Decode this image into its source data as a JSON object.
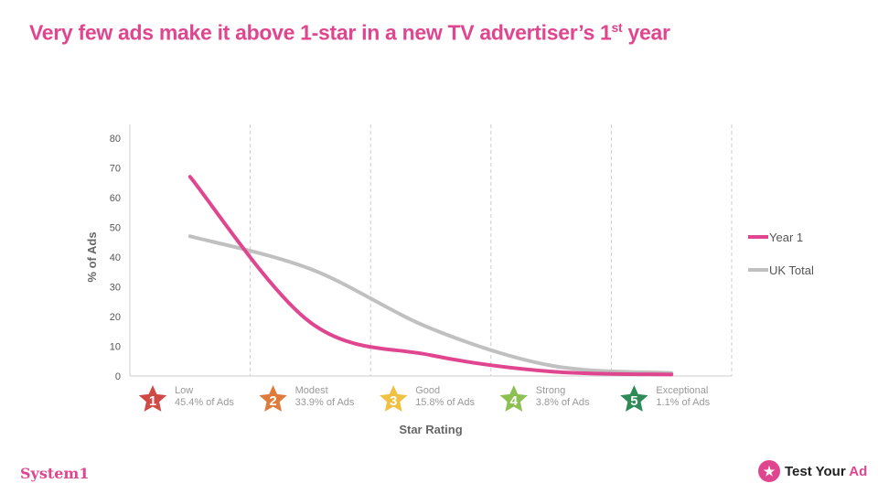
{
  "title": {
    "text": "Very few ads make it above 1-star in a new TV advertiser’s 1",
    "sup": "st",
    "tail": " year"
  },
  "chart_data": {
    "type": "line",
    "x": [
      1,
      2,
      3,
      4,
      5
    ],
    "xlabel": "Star Rating",
    "ylabel": "% of Ads",
    "ylim": [
      0,
      80
    ],
    "yticks": [
      0,
      10,
      20,
      30,
      40,
      50,
      60,
      70,
      80
    ],
    "grid": "vertical dashed",
    "legend": "right",
    "categories": [
      {
        "num": "1",
        "name": "Low",
        "share": "45.4% of Ads",
        "color": "#d04a45"
      },
      {
        "num": "2",
        "name": "Modest",
        "share": "33.9% of Ads",
        "color": "#e07a3a"
      },
      {
        "num": "3",
        "name": "Good",
        "share": "15.8% of Ads",
        "color": "#f0c040"
      },
      {
        "num": "4",
        "name": "Strong",
        "share": "3.8% of Ads",
        "color": "#8cc152"
      },
      {
        "num": "5",
        "name": "Exceptional",
        "share": "1.1% of Ads",
        "color": "#2e8b57"
      }
    ],
    "series": [
      {
        "name": "Year 1",
        "color": "#e0468f",
        "values": [
          67,
          18,
          7,
          1.5,
          0.5
        ]
      },
      {
        "name": "UK Total",
        "color": "#c0c0c0",
        "values": [
          47,
          36,
          16,
          3.5,
          1
        ]
      }
    ]
  },
  "logos": {
    "left": "System1",
    "right_a": "Test Your ",
    "right_b": "Ad"
  }
}
